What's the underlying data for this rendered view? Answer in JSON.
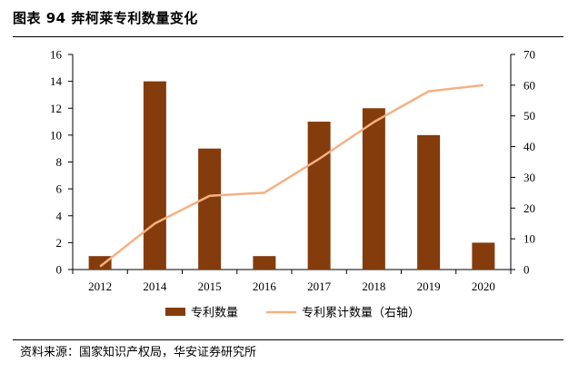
{
  "header": {
    "title": "图表 94  奔柯莱专利数量变化"
  },
  "footer": {
    "source": "资料来源：国家知识产权局，华安证券研究所"
  },
  "chart_data": {
    "type": "bar",
    "categories": [
      "2012",
      "2014",
      "2015",
      "2016",
      "2017",
      "2018",
      "2019",
      "2020"
    ],
    "series": [
      {
        "name": "专利数量",
        "type": "bar",
        "axis": "left",
        "values": [
          1,
          14,
          9,
          1,
          11,
          12,
          10,
          2
        ],
        "color": "#843C0C"
      },
      {
        "name": "专利累计数量（右轴）",
        "type": "line",
        "axis": "right",
        "values": [
          1,
          15,
          24,
          25,
          36,
          48,
          58,
          60
        ],
        "color": "#F4B183"
      }
    ],
    "y_left": {
      "min": 0,
      "max": 16,
      "ticks": [
        "0",
        "2",
        "4",
        "6",
        "8",
        "10",
        "12",
        "14",
        "16"
      ]
    },
    "y_right": {
      "min": 0,
      "max": 70,
      "ticks": [
        "0",
        "10",
        "20",
        "30",
        "40",
        "50",
        "60",
        "70"
      ]
    },
    "legend": {
      "position": "bottom"
    },
    "grid": false
  }
}
